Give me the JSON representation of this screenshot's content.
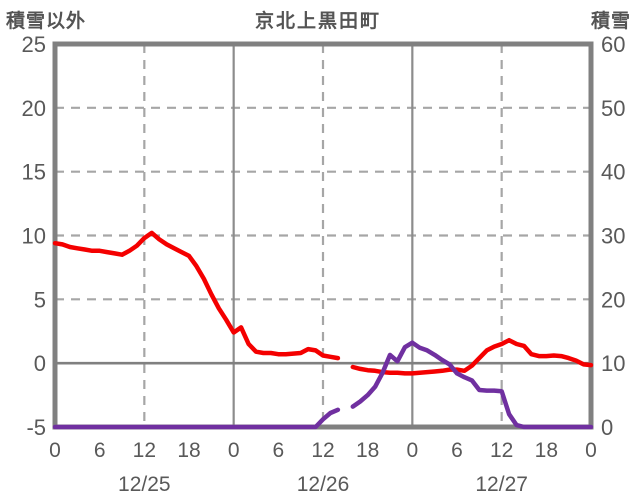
{
  "header": {
    "left_axis_title": "積雪以外",
    "title": "京北上黒田町",
    "right_axis_title": "積雪"
  },
  "colors": {
    "background": "#ffffff",
    "border": "#808080",
    "grid_dashed": "#a6a6a6",
    "grid_solid": "#8c8c8c",
    "zero_line": "#808080",
    "text": "#595959",
    "red_series": "#f40000",
    "purple_series": "#7030a0"
  },
  "chart_data": {
    "type": "line",
    "title": "京北上黒田町",
    "legend": "none",
    "left_axis": {
      "label": "積雪以外",
      "min": -5,
      "max": 25,
      "ticks": [
        "25",
        "20",
        "15",
        "10",
        "5",
        "0",
        "-5"
      ],
      "tick_values": [
        25,
        20,
        15,
        10,
        5,
        0,
        -5
      ]
    },
    "right_axis": {
      "label": "積雪",
      "min": 0,
      "max": 60,
      "ticks": [
        "60",
        "50",
        "40",
        "30",
        "20",
        "10",
        "0"
      ],
      "tick_values": [
        60,
        50,
        40,
        30,
        20,
        10,
        0
      ]
    },
    "x_axis": {
      "hours_span": 72,
      "tick_interval_hours": 6,
      "tick_labels": [
        "0",
        "6",
        "12",
        "18",
        "0",
        "6",
        "12",
        "18",
        "0",
        "6",
        "12",
        "18",
        "0"
      ],
      "date_labels": [
        {
          "label": "12/25",
          "center_hour": 12
        },
        {
          "label": "12/26",
          "center_hour": 36
        },
        {
          "label": "12/27",
          "center_hour": 60
        }
      ]
    },
    "gridlines": {
      "horizontal_dashed_left_values": [
        20,
        15,
        10,
        5
      ],
      "horizontal_solid_left_values": [
        0
      ],
      "vertical_dashed_hours": [
        12,
        36,
        60
      ],
      "vertical_solid_hours": [
        24,
        48
      ]
    },
    "series": [
      {
        "name": "red-left-axis-series",
        "axis": "left",
        "color": "#f40000",
        "values": [
          9.4,
          9.3,
          9.1,
          9.0,
          8.9,
          8.8,
          8.8,
          8.7,
          8.6,
          8.5,
          8.8,
          9.2,
          9.8,
          10.2,
          9.7,
          9.3,
          9.0,
          8.7,
          8.4,
          7.6,
          6.6,
          5.4,
          4.3,
          3.4,
          2.4,
          2.8,
          1.5,
          0.9,
          0.8,
          0.8,
          0.7,
          0.7,
          0.75,
          0.8,
          1.1,
          1.0,
          0.6,
          0.5,
          0.4,
          null,
          -0.3,
          -0.45,
          -0.55,
          -0.6,
          -0.7,
          -0.75,
          -0.75,
          -0.8,
          -0.8,
          -0.75,
          -0.7,
          -0.65,
          -0.6,
          -0.5,
          -0.5,
          -0.6,
          -0.2,
          0.4,
          1.0,
          1.3,
          1.5,
          1.8,
          1.5,
          1.35,
          0.7,
          0.55,
          0.55,
          0.6,
          0.55,
          0.4,
          0.2,
          -0.1,
          -0.15
        ]
      },
      {
        "name": "purple-right-axis-series",
        "axis": "right",
        "color": "#7030a0",
        "values": [
          0,
          0,
          0,
          0,
          0,
          0,
          0,
          0,
          0,
          0,
          0,
          0,
          0,
          0,
          0,
          0,
          0,
          0,
          0,
          0,
          0,
          0,
          0,
          0,
          0,
          0,
          0,
          0,
          0,
          0,
          0,
          0,
          0,
          0,
          0,
          0,
          1.2,
          2.2,
          2.7,
          null,
          3.2,
          4.0,
          5.0,
          6.3,
          8.5,
          11.3,
          10.3,
          12.5,
          13.2,
          12.4,
          12.0,
          11.3,
          10.5,
          9.8,
          8.4,
          7.8,
          7.3,
          5.8,
          5.7,
          5.7,
          5.6,
          2.0,
          0.3,
          0,
          0,
          0,
          0,
          0,
          0,
          0,
          0,
          0,
          0
        ]
      }
    ]
  }
}
